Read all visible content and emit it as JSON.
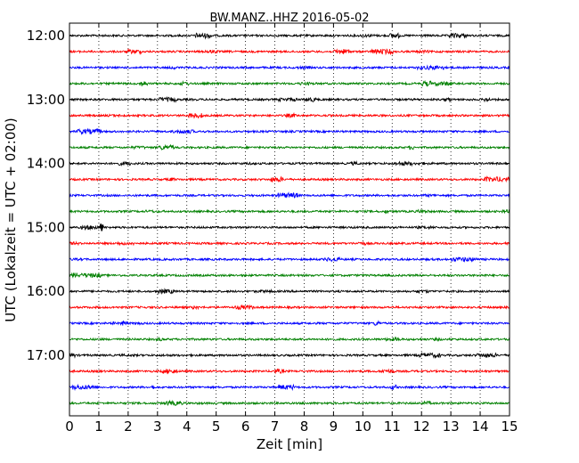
{
  "chart_data": {
    "type": "line",
    "title": "BW.MANZ..HHZ 2016-05-02",
    "xlabel": "Zeit  [min]",
    "ylabel": "UTC (Lokalzeit = UTC + 02:00)",
    "xlim": [
      0,
      15
    ],
    "x_ticks": [
      0,
      1,
      2,
      3,
      4,
      5,
      6,
      7,
      8,
      9,
      10,
      11,
      12,
      13,
      14,
      15
    ],
    "y_tick_labels": [
      "12:00",
      "13:00",
      "14:00",
      "15:00",
      "16:00",
      "17:00"
    ],
    "grid": "vertical dotted lines at each minute",
    "trace_colors": [
      "#000000",
      "#ff0000",
      "#0000ff",
      "#008000"
    ],
    "traces": [
      {
        "start": "12:00",
        "color": "#000000"
      },
      {
        "start": "12:15",
        "color": "#ff0000"
      },
      {
        "start": "12:30",
        "color": "#0000ff"
      },
      {
        "start": "12:45",
        "color": "#008000"
      },
      {
        "start": "13:00",
        "color": "#000000"
      },
      {
        "start": "13:15",
        "color": "#ff0000"
      },
      {
        "start": "13:30",
        "color": "#0000ff"
      },
      {
        "start": "13:45",
        "color": "#008000"
      },
      {
        "start": "14:00",
        "color": "#000000"
      },
      {
        "start": "14:15",
        "color": "#ff0000"
      },
      {
        "start": "14:30",
        "color": "#0000ff"
      },
      {
        "start": "14:45",
        "color": "#008000"
      },
      {
        "start": "15:00",
        "color": "#000000"
      },
      {
        "start": "15:15",
        "color": "#ff0000"
      },
      {
        "start": "15:30",
        "color": "#0000ff"
      },
      {
        "start": "15:45",
        "color": "#008000"
      },
      {
        "start": "16:00",
        "color": "#000000"
      },
      {
        "start": "16:15",
        "color": "#ff0000"
      },
      {
        "start": "16:30",
        "color": "#0000ff"
      },
      {
        "start": "16:45",
        "color": "#008000"
      },
      {
        "start": "17:00",
        "color": "#000000"
      },
      {
        "start": "17:15",
        "color": "#ff0000"
      },
      {
        "start": "17:30",
        "color": "#0000ff"
      },
      {
        "start": "17:45",
        "color": "#008000"
      }
    ]
  }
}
